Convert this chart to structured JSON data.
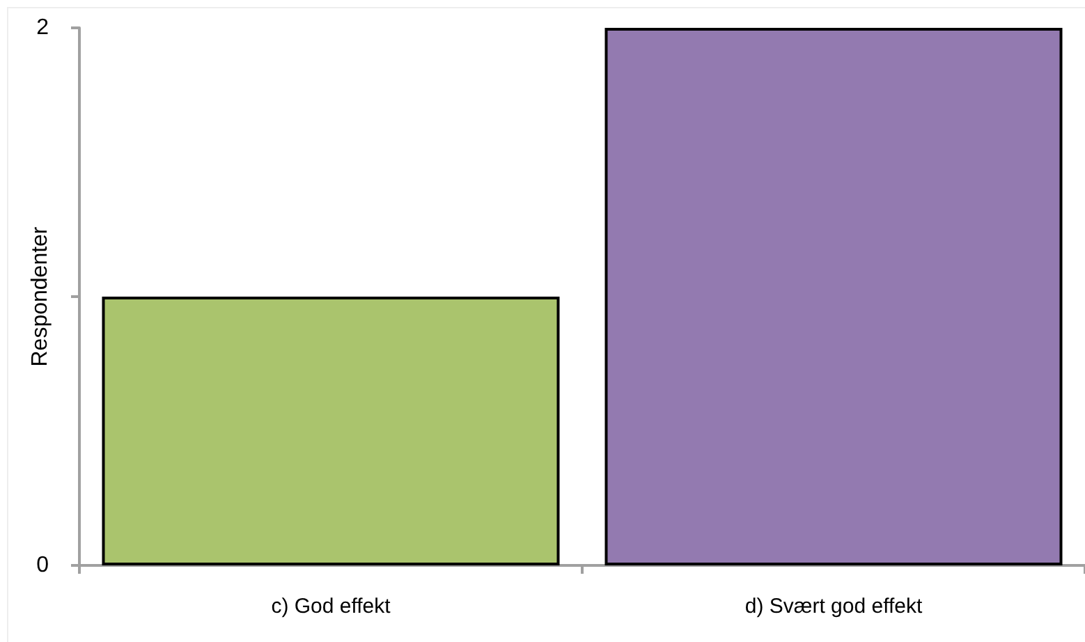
{
  "chart_data": {
    "type": "bar",
    "ylabel": "Respondenter",
    "categories": [
      "c) God effekt",
      "d) Svært god effekt"
    ],
    "values": [
      1,
      2
    ],
    "colors": [
      "#aac46d",
      "#937ab0"
    ],
    "ylim": [
      0,
      2
    ],
    "yticks": [
      0,
      {
        "value": 1,
        "label": null
      },
      2
    ],
    "grid": false
  }
}
